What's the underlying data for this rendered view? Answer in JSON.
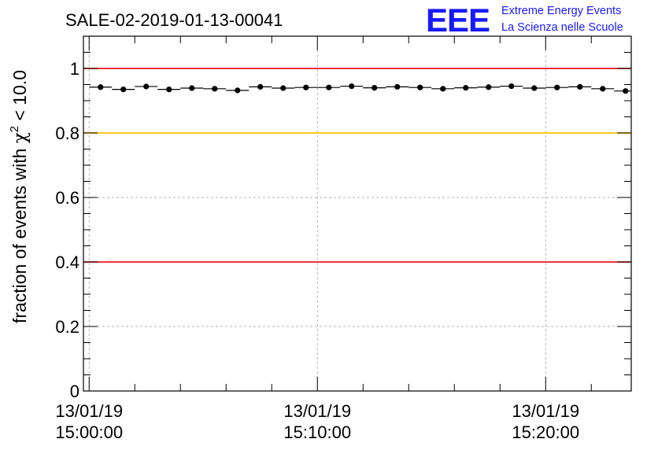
{
  "chart_data": {
    "type": "scatter",
    "title": "SALE-02-2019-01-13-00041",
    "ylabel_main": "fraction of events with ",
    "ylabel_chi": "χ",
    "ylabel_sup": "2",
    "ylabel_cut": " < 10.0",
    "ylim": [
      0,
      1.1
    ],
    "yticks": [
      {
        "value": 0,
        "label": "0"
      },
      {
        "value": 0.2,
        "label": "0.2"
      },
      {
        "value": 0.4,
        "label": "0.4"
      },
      {
        "value": 0.6,
        "label": "0.6"
      },
      {
        "value": 0.8,
        "label": "0.8"
      },
      {
        "value": 1,
        "label": "1"
      }
    ],
    "xlim_minutes": [
      -0.25,
      23.75
    ],
    "xticks": [
      {
        "minute": 0,
        "date": "13/01/19",
        "time": "15:00:00"
      },
      {
        "minute": 10,
        "date": "13/01/19",
        "time": "15:10:00"
      },
      {
        "minute": 20,
        "date": "13/01/19",
        "time": "15:20:00"
      }
    ],
    "bin_width_minutes": 1,
    "points_x_minutes": [
      0.5,
      1.5,
      2.5,
      3.5,
      4.5,
      5.5,
      6.5,
      7.5,
      8.5,
      9.5,
      10.5,
      11.5,
      12.5,
      13.5,
      14.5,
      15.5,
      16.5,
      17.5,
      18.5,
      19.5,
      20.5,
      21.5,
      22.5,
      23.5
    ],
    "points_y": [
      0.942,
      0.935,
      0.944,
      0.935,
      0.939,
      0.937,
      0.932,
      0.943,
      0.939,
      0.941,
      0.941,
      0.945,
      0.94,
      0.943,
      0.941,
      0.937,
      0.94,
      0.942,
      0.945,
      0.939,
      0.941,
      0.943,
      0.937,
      0.93
    ],
    "reference_lines": [
      {
        "y": 1.0,
        "color": "#e8161b"
      },
      {
        "y": 0.8,
        "color": "#f5c300"
      },
      {
        "y": 0.4,
        "color": "#e8161b"
      }
    ],
    "grid": true,
    "colors": {
      "points": "#000000",
      "frame": "#000000",
      "grid": "#b3b3b3"
    }
  },
  "logo": {
    "letters": "EEE",
    "line1": "Extreme Energy Events",
    "line2": "La Scienza nelle Scuole",
    "color": "#1a1aff"
  }
}
